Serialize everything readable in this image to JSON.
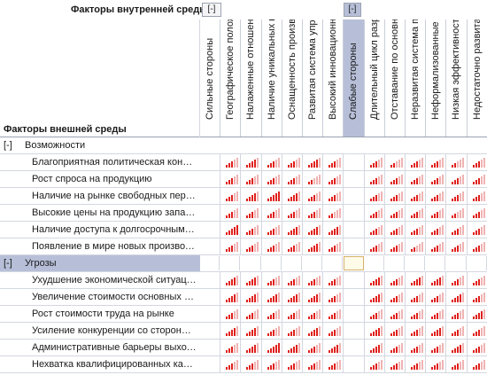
{
  "headers": {
    "internal_title": "Факторы внутренней среды",
    "external_title": "Факторы внешней среды",
    "toggle_internal": "[-]",
    "toggle_weak": "[-]"
  },
  "columns": [
    "Сильные стороны",
    "Географическое полож...",
    "Налаженные отношения...",
    "Наличие уникальных пр...",
    "Оснащенность произв...",
    "Развитая система упра...",
    "Высокий инновационны...",
    "Слабые стороны",
    "Длительный цикл разра...",
    "Отставание по основны...",
    "Неразвитая система пр...",
    "Неформализованные п...",
    "Низкая эффективность ...",
    "Недостаточно развитая..."
  ],
  "groups": [
    {
      "toggle": "[-]",
      "label": "Возможности",
      "rows": [
        {
          "label": "Благоприятная политическая конъюнк...",
          "levels": [
            null,
            3,
            4,
            3,
            3,
            4,
            3,
            null,
            3,
            2,
            3,
            3,
            2,
            3
          ]
        },
        {
          "label": "Рост спроса на продукцию",
          "levels": [
            null,
            3,
            3,
            3,
            3,
            2,
            3,
            null,
            3,
            3,
            3,
            3,
            3,
            3
          ]
        },
        {
          "label": "Наличие на рынке свободных перспек...",
          "levels": [
            null,
            3,
            4,
            5,
            4,
            3,
            3,
            null,
            3,
            3,
            3,
            3,
            3,
            3
          ]
        },
        {
          "label": "Высокие цены на продукцию западных...",
          "levels": [
            null,
            3,
            3,
            3,
            3,
            3,
            2,
            null,
            3,
            3,
            3,
            3,
            2,
            3
          ]
        },
        {
          "label": "Наличие доступа к долгосрочным фин...",
          "levels": [
            null,
            5,
            3,
            3,
            4,
            4,
            4,
            null,
            3,
            3,
            3,
            3,
            3,
            3
          ]
        },
        {
          "label": "Появление в мире новых производст...",
          "levels": [
            null,
            3,
            3,
            3,
            3,
            4,
            3,
            null,
            3,
            3,
            2,
            3,
            3,
            3
          ]
        }
      ]
    },
    {
      "toggle": "[-]",
      "label": "Угрозы",
      "rows": [
        {
          "label": "Ухудшение экономической ситуации в ...",
          "levels": [
            null,
            4,
            4,
            3,
            3,
            3,
            3,
            null,
            4,
            3,
            4,
            4,
            3,
            3
          ]
        },
        {
          "label": "Увеличение стоимости основных мат...",
          "levels": [
            null,
            4,
            4,
            4,
            4,
            4,
            3,
            null,
            4,
            3,
            3,
            3,
            4,
            3
          ]
        },
        {
          "label": "Рост стоимости труда на рынке",
          "levels": [
            null,
            3,
            3,
            3,
            3,
            3,
            3,
            null,
            3,
            3,
            3,
            3,
            3,
            4
          ]
        },
        {
          "label": "Усиление конкуренции со стороны за...",
          "levels": [
            null,
            4,
            4,
            3,
            3,
            4,
            3,
            null,
            4,
            3,
            3,
            4,
            3,
            3
          ]
        },
        {
          "label": "Административные барьеры выхода в...",
          "levels": [
            null,
            3,
            4,
            5,
            4,
            3,
            4,
            null,
            4,
            3,
            3,
            3,
            4,
            3
          ]
        },
        {
          "label": "Нехватка квалифицированных кадров...",
          "levels": [
            null,
            3,
            3,
            3,
            3,
            3,
            3,
            null,
            3,
            3,
            3,
            3,
            3,
            3
          ]
        }
      ]
    }
  ],
  "colors": {
    "selection": "#b7bfd8",
    "bar_on": "#e0201b",
    "bar_off": "#f0b3b3",
    "grid": "#d3d7df"
  }
}
